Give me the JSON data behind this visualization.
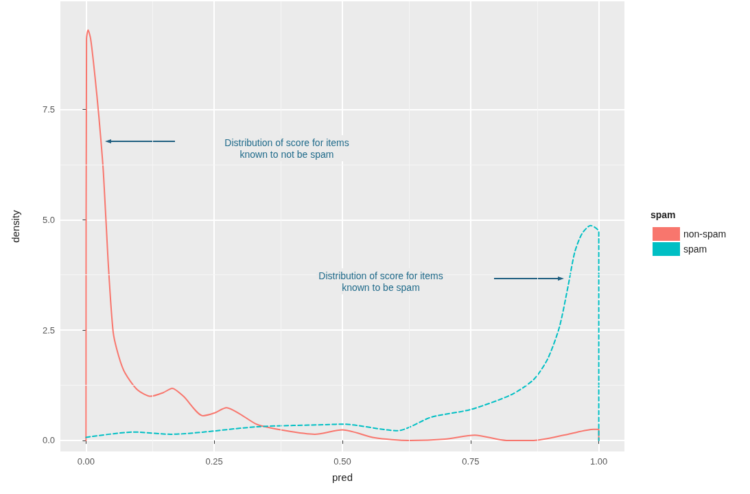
{
  "chart_data": {
    "type": "line",
    "xlabel": "pred",
    "ylabel": "density",
    "legend_title": "spam",
    "legend": "right",
    "grid": true,
    "marker": "none",
    "xlim": [
      -0.05,
      1.05
    ],
    "ylim": [
      -0.25,
      9.95
    ],
    "xticks": [
      {
        "value": 0,
        "label": "0.00"
      },
      {
        "value": 0.25,
        "label": "0.25"
      },
      {
        "value": 0.5,
        "label": "0.50"
      },
      {
        "value": 0.75,
        "label": "0.75"
      },
      {
        "value": 1,
        "label": "1.00"
      }
    ],
    "yticks": [
      {
        "value": 0,
        "label": "0.0"
      },
      {
        "value": 2.5,
        "label": "2.5"
      },
      {
        "value": 5,
        "label": "5.0"
      },
      {
        "value": 7.5,
        "label": "7.5"
      }
    ],
    "series": [
      {
        "name": "non-spam",
        "color": "#f8766d",
        "line_style": "solid",
        "x": [
          0,
          0.001,
          0.004,
          0.009,
          0.017,
          0.025,
          0.034,
          0.043,
          0.053,
          0.064,
          0.076,
          0.1,
          0.126,
          0.15,
          0.168,
          0.19,
          0.228,
          0.25,
          0.274,
          0.3,
          0.334,
          0.39,
          0.446,
          0.5,
          0.563,
          0.63,
          0.7,
          0.758,
          0.82,
          0.873,
          0.94,
          0.99,
          1,
          1
        ],
        "values": [
          0,
          9.1,
          9.3,
          9.1,
          8.3,
          7.35,
          6.05,
          4.08,
          2.45,
          1.9,
          1.53,
          1.15,
          1.0,
          1.08,
          1.18,
          1.0,
          0.56,
          0.62,
          0.74,
          0.6,
          0.36,
          0.22,
          0.14,
          0.24,
          0.06,
          0,
          0.03,
          0.12,
          0,
          0,
          0.14,
          0.25,
          0.25,
          0
        ]
      },
      {
        "name": "spam",
        "color": "#00bfc4",
        "line_style": "dashed",
        "x": [
          0,
          0.093,
          0.165,
          0.334,
          0.474,
          0.5,
          0.607,
          0.674,
          0.75,
          0.83,
          0.873,
          0.9,
          0.923,
          0.94,
          0.953,
          0.967,
          0.984,
          1,
          1
        ],
        "values": [
          0.07,
          0.19,
          0.14,
          0.31,
          0.36,
          0.37,
          0.22,
          0.53,
          0.7,
          1.04,
          1.38,
          1.84,
          2.56,
          3.49,
          4.26,
          4.68,
          4.87,
          4.73,
          0
        ]
      }
    ],
    "annotations": [
      "Distribution of score for items\nknown to not be spam",
      "Distribution of score for items\nknown to be spam"
    ]
  }
}
